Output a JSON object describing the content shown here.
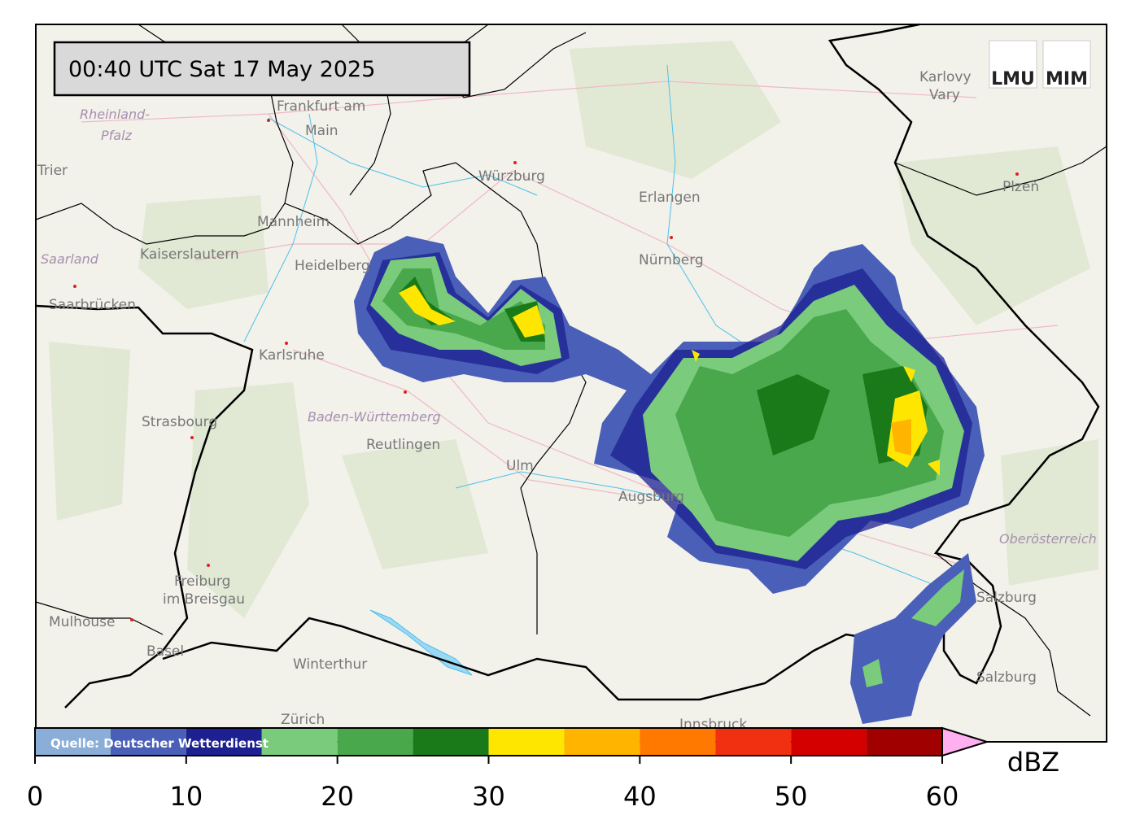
{
  "timestamp": "00:40 UTC  Sat 17 May 2025",
  "logos": [
    "LMU",
    "MIM"
  ],
  "source": "Quelle: Deutscher Wetterdienst",
  "places": [
    "Frankfurt am",
    "Main",
    "Trier",
    "Würzburg",
    "Karlovy",
    "Vary",
    "Plzeň",
    "Erlangen",
    "Mannheim",
    "Kaiserslautern",
    "Heidelberg",
    "Nürnberg",
    "Saarbrücken",
    "Karlsruhe",
    "Strasbourg",
    "Reutlingen",
    "Ulm",
    "Augsburg",
    "Freiburg",
    "im Breisgau",
    "Mulhouse",
    "Basel",
    "Winterthur",
    "Zürich",
    "Salzburg",
    "Innsbruck"
  ],
  "regions": [
    "Rheinland-",
    "Pfalz",
    "Saarland",
    "Baden-Württemberg",
    "Oberösterreich"
  ],
  "colorbar": {
    "unit": "dBZ",
    "bounds": [
      0,
      5,
      10,
      15,
      20,
      25,
      30,
      35,
      40,
      45,
      50,
      55,
      60
    ],
    "colors": [
      "#8aaed8",
      "#4a5fb8",
      "#1c2090",
      "#7acb7c",
      "#4aa84c",
      "#1a7a1a",
      "#ffe600",
      "#ffb400",
      "#ff7800",
      "#f03010",
      "#d40000",
      "#a00000"
    ],
    "extend_color": "#ffb0f0",
    "ticks": [
      0,
      10,
      20,
      30,
      40,
      50,
      60
    ]
  }
}
